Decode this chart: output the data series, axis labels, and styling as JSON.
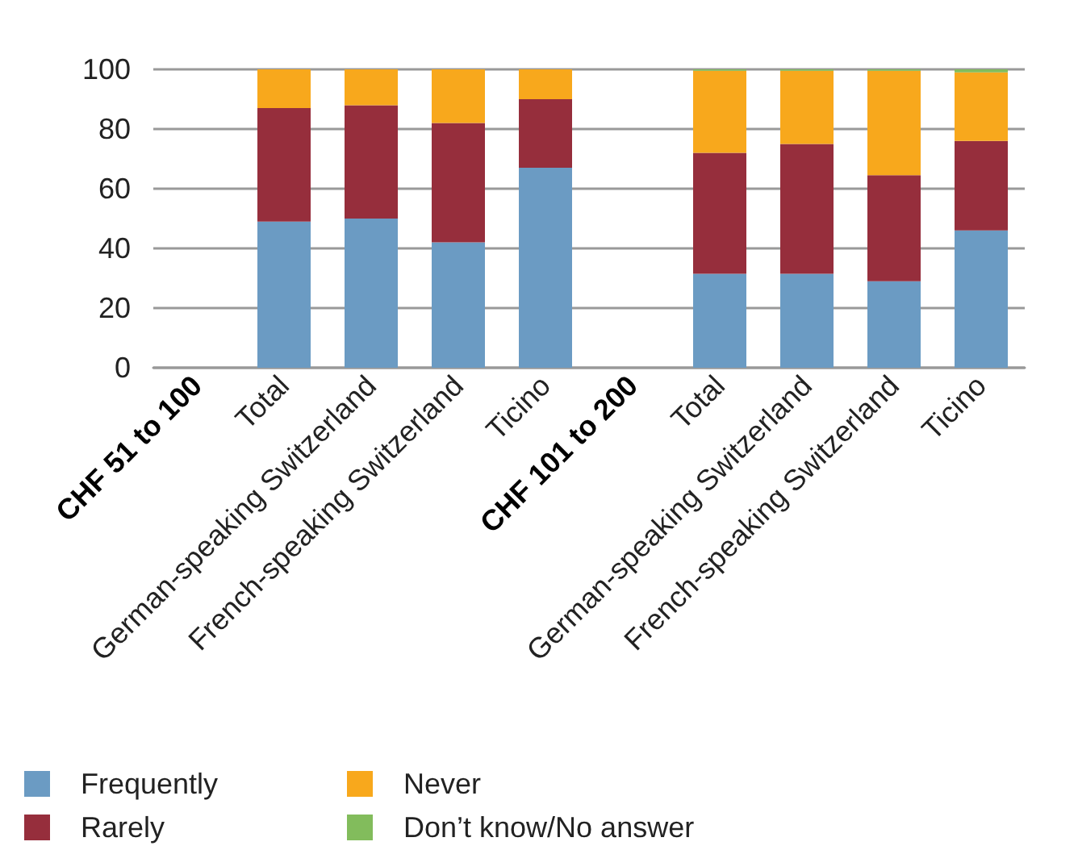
{
  "chart_data": {
    "type": "bar",
    "stacked": true,
    "categories": [
      "CHF 51 to 100",
      "Total",
      "German-speaking Switzerland",
      "French-speaking Switzerland",
      "Ticino",
      "CHF 101 to 200",
      "Total",
      "German-speaking Switzerland",
      "French-speaking Switzerland",
      "Ticino"
    ],
    "series": [
      {
        "name": "Frequently",
        "color": "#6b9bc3",
        "values": [
          null,
          49,
          50,
          42,
          67,
          null,
          31.5,
          31.5,
          29,
          46
        ]
      },
      {
        "name": "Rarely",
        "color": "#962e3c",
        "values": [
          null,
          38,
          38,
          40,
          23,
          null,
          40.5,
          43.5,
          35.5,
          30
        ]
      },
      {
        "name": "Never",
        "color": "#f8a81c",
        "values": [
          null,
          13,
          12,
          18,
          10,
          null,
          27.5,
          24.5,
          35,
          23
        ]
      },
      {
        "name": "Don’t know/No answer",
        "color": "#82bc5c",
        "values": [
          null,
          0,
          0,
          0,
          0,
          null,
          0.5,
          0.5,
          0.5,
          1
        ]
      }
    ],
    "ylim": [
      0,
      100
    ],
    "yticks": [
      0,
      20,
      40,
      60,
      80,
      100
    ],
    "grid": "y",
    "legend": "bottom left"
  }
}
